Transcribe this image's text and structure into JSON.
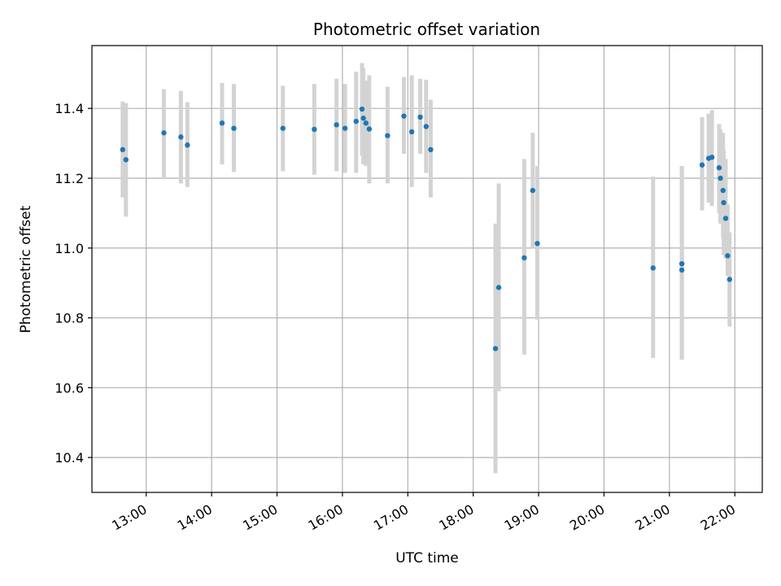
{
  "chart_data": {
    "type": "scatter",
    "title": "Photometric offset variation",
    "xlabel": "UTC time",
    "ylabel": "Photometric offset",
    "x_unit": "UTC hours",
    "xlim": [
      12.17,
      22.42
    ],
    "ylim": [
      10.3,
      11.58
    ],
    "x_ticks": [
      13,
      14,
      15,
      16,
      17,
      18,
      19,
      20,
      21,
      22
    ],
    "x_tick_labels": [
      "13:00",
      "14:00",
      "15:00",
      "16:00",
      "17:00",
      "18:00",
      "19:00",
      "20:00",
      "21:00",
      "22:00"
    ],
    "y_ticks": [
      10.4,
      10.6,
      10.8,
      11.0,
      11.2,
      11.4
    ],
    "y_tick_labels": [
      "10.4",
      "10.6",
      "10.8",
      "11.0",
      "11.2",
      "11.4"
    ],
    "grid": true,
    "marker_color": "#1f77b4",
    "errorbar_color": "#d3d3d3",
    "points": [
      {
        "x": 12.64,
        "y": 11.282,
        "low": 11.145,
        "high": 11.42
      },
      {
        "x": 12.69,
        "y": 11.253,
        "low": 11.09,
        "high": 11.415
      },
      {
        "x": 13.27,
        "y": 11.33,
        "low": 11.2,
        "high": 11.455
      },
      {
        "x": 13.53,
        "y": 11.318,
        "low": 11.185,
        "high": 11.45
      },
      {
        "x": 13.63,
        "y": 11.295,
        "low": 11.175,
        "high": 11.418
      },
      {
        "x": 14.16,
        "y": 11.358,
        "low": 11.24,
        "high": 11.473
      },
      {
        "x": 14.34,
        "y": 11.343,
        "low": 11.218,
        "high": 11.47
      },
      {
        "x": 15.09,
        "y": 11.343,
        "low": 11.22,
        "high": 11.465
      },
      {
        "x": 15.57,
        "y": 11.34,
        "low": 11.21,
        "high": 11.47
      },
      {
        "x": 15.91,
        "y": 11.353,
        "low": 11.22,
        "high": 11.485
      },
      {
        "x": 16.04,
        "y": 11.343,
        "low": 11.215,
        "high": 11.47
      },
      {
        "x": 16.21,
        "y": 11.363,
        "low": 11.215,
        "high": 11.505
      },
      {
        "x": 16.3,
        "y": 11.398,
        "low": 11.265,
        "high": 11.53
      },
      {
        "x": 16.32,
        "y": 11.372,
        "low": 11.24,
        "high": 11.515
      },
      {
        "x": 16.36,
        "y": 11.358,
        "low": 11.235,
        "high": 11.48
      },
      {
        "x": 16.41,
        "y": 11.341,
        "low": 11.185,
        "high": 11.495
      },
      {
        "x": 16.69,
        "y": 11.322,
        "low": 11.185,
        "high": 11.462
      },
      {
        "x": 16.94,
        "y": 11.378,
        "low": 11.27,
        "high": 11.49
      },
      {
        "x": 17.06,
        "y": 11.333,
        "low": 11.175,
        "high": 11.495
      },
      {
        "x": 17.19,
        "y": 11.375,
        "low": 11.27,
        "high": 11.485
      },
      {
        "x": 17.28,
        "y": 11.348,
        "low": 11.215,
        "high": 11.482
      },
      {
        "x": 17.35,
        "y": 11.282,
        "low": 11.145,
        "high": 11.425
      },
      {
        "x": 18.34,
        "y": 10.712,
        "low": 10.355,
        "high": 11.07
      },
      {
        "x": 18.39,
        "y": 10.887,
        "low": 10.59,
        "high": 11.185
      },
      {
        "x": 18.78,
        "y": 10.972,
        "low": 10.695,
        "high": 11.255
      },
      {
        "x": 18.91,
        "y": 11.165,
        "low": 11.0,
        "high": 11.33
      },
      {
        "x": 18.98,
        "y": 11.013,
        "low": 10.795,
        "high": 11.235
      },
      {
        "x": 20.75,
        "y": 10.943,
        "low": 10.685,
        "high": 11.205
      },
      {
        "x": 21.19,
        "y": 10.955,
        "low": 10.68,
        "high": 11.235
      },
      {
        "x": 21.19,
        "y": 10.937,
        "low": 10.68,
        "high": 11.235
      },
      {
        "x": 21.5,
        "y": 11.238,
        "low": 11.108,
        "high": 11.375
      },
      {
        "x": 21.6,
        "y": 11.257,
        "low": 11.13,
        "high": 11.385
      },
      {
        "x": 21.65,
        "y": 11.26,
        "low": 11.12,
        "high": 11.395
      },
      {
        "x": 21.76,
        "y": 11.23,
        "low": 11.1,
        "high": 11.355
      },
      {
        "x": 21.78,
        "y": 11.2,
        "low": 11.07,
        "high": 11.34
      },
      {
        "x": 21.82,
        "y": 11.165,
        "low": 11.03,
        "high": 11.33
      },
      {
        "x": 21.83,
        "y": 11.13,
        "low": 10.98,
        "high": 11.28
      },
      {
        "x": 21.86,
        "y": 11.085,
        "low": 10.97,
        "high": 11.255
      },
      {
        "x": 21.89,
        "y": 10.978,
        "low": 10.92,
        "high": 11.125
      },
      {
        "x": 21.92,
        "y": 10.91,
        "low": 10.775,
        "high": 11.045
      }
    ]
  }
}
